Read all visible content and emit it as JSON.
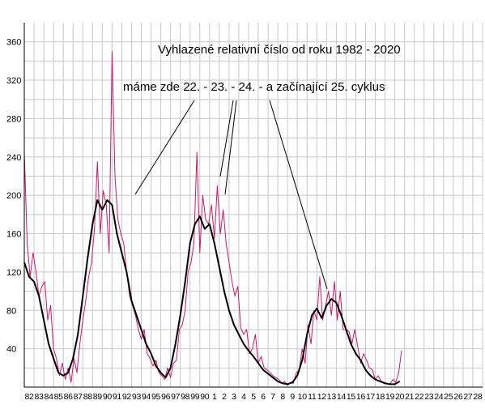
{
  "chart_data": {
    "type": "line",
    "title": "Vyhlazené relativní číslo od roku 1982 - 2020",
    "annotation": "máme zde 22. - 23. - 24. - a začínající 25. cyklus",
    "xlabel": "",
    "ylabel": "",
    "ylim": [
      0,
      380
    ],
    "yticks": [
      40,
      80,
      120,
      160,
      200,
      240,
      280,
      320,
      360
    ],
    "xlim": [
      1982,
      2029
    ],
    "x_tick_labels": [
      "82",
      "83",
      "84",
      "85",
      "86",
      "87",
      "88",
      "89",
      "90",
      "91",
      "92",
      "93",
      "94",
      "95",
      "96",
      "97",
      "98",
      "99",
      "90",
      "1",
      "2",
      "3",
      "4",
      "5",
      "6",
      "7",
      "8",
      "9",
      "10",
      "11",
      "12",
      "13",
      "14",
      "15",
      "16",
      "17",
      "18",
      "19",
      "20",
      "21",
      "22",
      "23",
      "24",
      "25",
      "26",
      "27",
      "28"
    ],
    "grid": true,
    "colors": {
      "monthly": "#c8196e",
      "smoothed": "#000000",
      "grid": "#c8c8c8",
      "axis": "#000000"
    },
    "series": [
      {
        "style": "monthly",
        "x": [
          1982.0,
          1982.3,
          1982.6,
          1982.9,
          1983.2,
          1983.5,
          1983.8,
          1984.1,
          1984.4,
          1984.7,
          1985.0,
          1985.3,
          1985.6,
          1985.9,
          1986.2,
          1986.5,
          1986.8,
          1987.1,
          1987.4,
          1987.7,
          1988.0,
          1988.3,
          1988.6,
          1988.9,
          1989.2,
          1989.5,
          1989.8,
          1990.1,
          1990.4,
          1990.7,
          1991.0,
          1991.3,
          1991.6,
          1991.9,
          1992.2,
          1992.5,
          1992.8,
          1993.1,
          1993.4,
          1993.7,
          1994.0,
          1994.3,
          1994.6,
          1994.9,
          1995.2,
          1995.5,
          1995.8,
          1996.1,
          1996.4,
          1996.7,
          1997.0,
          1997.3,
          1997.6,
          1997.9,
          1998.2,
          1998.5,
          1998.8,
          1999.1,
          1999.4,
          1999.7,
          2000.0,
          2000.3,
          2000.6,
          2000.9,
          2001.2,
          2001.5,
          2001.8,
          2002.1,
          2002.4,
          2002.7,
          2003.0,
          2003.3,
          2003.6,
          2003.9,
          2004.2,
          2004.5,
          2004.8,
          2005.1,
          2005.4,
          2005.7,
          2006.0,
          2006.3,
          2006.6,
          2006.9,
          2007.2,
          2007.5,
          2007.8,
          2008.1,
          2008.4,
          2008.7,
          2009.0,
          2009.3,
          2009.6,
          2009.9,
          2010.2,
          2010.5,
          2010.8,
          2011.1,
          2011.4,
          2011.7,
          2012.0,
          2012.3,
          2012.6,
          2012.9,
          2013.2,
          2013.5,
          2013.8,
          2014.1,
          2014.4,
          2014.7,
          2015.0,
          2015.3,
          2015.6,
          2015.9,
          2016.2,
          2016.5,
          2016.8,
          2017.1,
          2017.4,
          2017.7,
          2018.0,
          2018.3,
          2018.6,
          2018.9,
          2019.2,
          2019.5,
          2019.8,
          2020.1,
          2020.4,
          2020.7
        ],
        "values": [
          245,
          150,
          115,
          140,
          120,
          95,
          105,
          110,
          70,
          85,
          40,
          30,
          12,
          25,
          8,
          20,
          5,
          30,
          15,
          45,
          70,
          90,
          115,
          130,
          165,
          235,
          160,
          205,
          190,
          140,
          350,
          220,
          175,
          160,
          150,
          120,
          95,
          85,
          75,
          60,
          50,
          60,
          35,
          30,
          22,
          28,
          15,
          12,
          8,
          20,
          10,
          25,
          28,
          60,
          65,
          80,
          120,
          130,
          150,
          245,
          140,
          200,
          175,
          170,
          190,
          155,
          210,
          160,
          185,
          150,
          130,
          110,
          95,
          105,
          62,
          55,
          60,
          35,
          40,
          55,
          25,
          32,
          20,
          18,
          15,
          12,
          10,
          8,
          4,
          6,
          2,
          5,
          4,
          15,
          18,
          40,
          25,
          65,
          45,
          80,
          70,
          115,
          70,
          85,
          100,
          75,
          110,
          70,
          100,
          60,
          60,
          58,
          45,
          60,
          42,
          25,
          35,
          28,
          20,
          18,
          8,
          12,
          6,
          5,
          4,
          3,
          8,
          5,
          15,
          38
        ]
      },
      {
        "style": "smoothed",
        "x": [
          1982.0,
          1982.5,
          1983.0,
          1983.5,
          1984.0,
          1984.5,
          1985.0,
          1985.5,
          1986.0,
          1986.5,
          1987.0,
          1987.5,
          1988.0,
          1988.5,
          1989.0,
          1989.5,
          1990.0,
          1990.5,
          1991.0,
          1991.5,
          1992.0,
          1992.5,
          1993.0,
          1993.5,
          1994.0,
          1994.5,
          1995.0,
          1995.5,
          1996.0,
          1996.5,
          1997.0,
          1997.5,
          1998.0,
          1998.5,
          1999.0,
          1999.5,
          2000.0,
          2000.5,
          2001.0,
          2001.5,
          2002.0,
          2002.5,
          2003.0,
          2003.5,
          2004.0,
          2004.5,
          2005.0,
          2005.5,
          2006.0,
          2006.5,
          2007.0,
          2007.5,
          2008.0,
          2008.5,
          2009.0,
          2009.5,
          2010.0,
          2010.5,
          2011.0,
          2011.5,
          2012.0,
          2012.5,
          2013.0,
          2013.5,
          2014.0,
          2014.5,
          2015.0,
          2015.5,
          2016.0,
          2016.5,
          2017.0,
          2017.5,
          2018.0,
          2018.5,
          2019.0,
          2019.5,
          2020.0,
          2020.5
        ],
        "values": [
          130,
          115,
          110,
          95,
          70,
          45,
          30,
          15,
          12,
          15,
          30,
          55,
          95,
          135,
          170,
          195,
          185,
          195,
          190,
          160,
          140,
          120,
          90,
          75,
          60,
          45,
          35,
          22,
          15,
          10,
          20,
          45,
          75,
          110,
          150,
          170,
          178,
          165,
          170,
          150,
          125,
          100,
          80,
          65,
          55,
          45,
          38,
          32,
          25,
          18,
          14,
          10,
          6,
          4,
          3,
          5,
          12,
          28,
          55,
          75,
          82,
          72,
          85,
          92,
          88,
          75,
          60,
          45,
          35,
          28,
          18,
          12,
          8,
          6,
          4,
          3,
          3,
          6
        ]
      }
    ]
  }
}
